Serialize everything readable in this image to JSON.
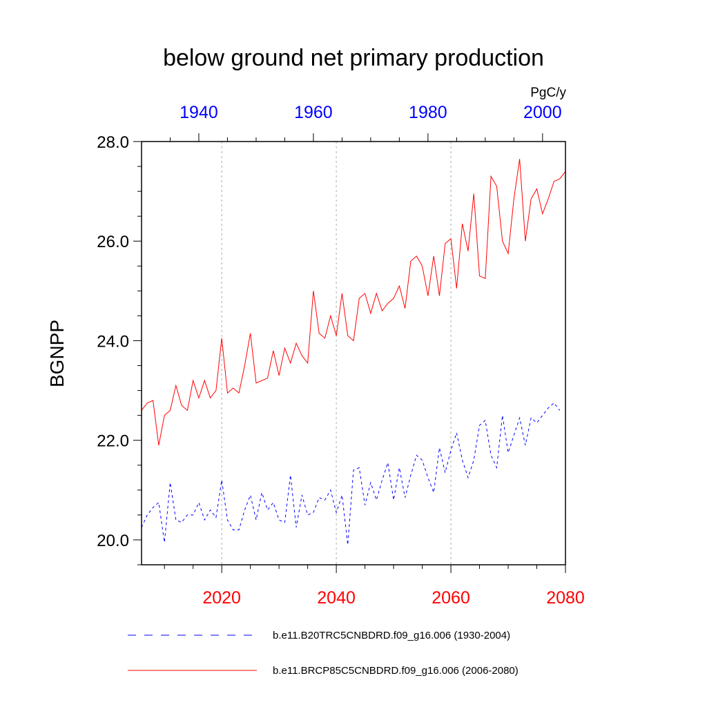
{
  "chart_data": {
    "type": "line",
    "title": "below ground net primary production",
    "ylabel": "BGNPP",
    "units": "PgC/y",
    "ylim": [
      19.5,
      28.0
    ],
    "yticks": [
      "20.0",
      "22.0",
      "24.0",
      "26.0",
      "28.0"
    ],
    "ytick_values": [
      20,
      22,
      24,
      26,
      28
    ],
    "bottom_axis": {
      "xlim": [
        2006,
        2080
      ],
      "ticks": [
        "2020",
        "2040",
        "2060",
        "2080"
      ],
      "tick_values": [
        2020,
        2040,
        2060,
        2080
      ],
      "color": "#ff0000"
    },
    "top_axis": {
      "xlim": [
        1930,
        2004
      ],
      "ticks": [
        "1940",
        "1960",
        "1980",
        "2000"
      ],
      "tick_values": [
        1940,
        1960,
        1980,
        2000
      ],
      "color": "#0000ff"
    },
    "gridlines_x": [
      2020,
      2040,
      2060
    ],
    "series": [
      {
        "name": "b.e11.B20TRC5CNBDRD.f09_g16.006 (1930-2004)",
        "axis": "top",
        "color": "#0000ff",
        "style": "dashed",
        "x_start": 1930,
        "values": [
          20.25,
          20.5,
          20.65,
          20.75,
          19.95,
          21.15,
          20.4,
          20.35,
          20.5,
          20.5,
          20.75,
          20.4,
          20.6,
          20.45,
          21.2,
          20.4,
          20.2,
          20.2,
          20.6,
          20.9,
          20.4,
          20.95,
          20.6,
          20.75,
          20.4,
          20.35,
          21.3,
          20.25,
          20.9,
          20.5,
          20.55,
          20.85,
          20.8,
          21.0,
          20.55,
          20.9,
          19.9,
          21.4,
          21.45,
          20.7,
          21.15,
          20.8,
          21.2,
          21.55,
          20.8,
          21.45,
          20.85,
          21.3,
          21.7,
          21.6,
          21.25,
          20.95,
          21.85,
          21.35,
          21.8,
          22.15,
          21.6,
          21.25,
          21.6,
          22.3,
          22.4,
          21.7,
          21.45,
          22.5,
          21.75,
          22.1,
          22.45,
          21.9,
          22.45,
          22.35,
          22.5,
          22.65,
          22.75,
          22.6
        ]
      },
      {
        "name": "b.e11.BRCP85C5CNBDRD.f09_g16.006 (2006-2080)",
        "axis": "bottom",
        "color": "#ff0000",
        "style": "solid",
        "x_start": 2006,
        "values": [
          22.6,
          22.75,
          22.8,
          21.9,
          22.5,
          22.6,
          23.1,
          22.7,
          22.6,
          23.2,
          22.85,
          23.2,
          22.85,
          23.0,
          24.05,
          22.95,
          23.05,
          22.95,
          23.5,
          24.15,
          23.15,
          23.2,
          23.25,
          23.8,
          23.3,
          23.85,
          23.55,
          23.95,
          23.7,
          23.55,
          25.0,
          24.15,
          24.05,
          24.5,
          24.1,
          24.95,
          24.1,
          24.0,
          24.85,
          24.95,
          24.55,
          24.95,
          24.6,
          24.75,
          24.85,
          25.1,
          24.65,
          25.6,
          25.7,
          25.5,
          24.9,
          25.7,
          24.9,
          25.95,
          26.05,
          25.05,
          26.35,
          25.8,
          26.95,
          25.3,
          25.25,
          27.3,
          27.1,
          26.0,
          25.75,
          26.85,
          27.65,
          26.0,
          26.85,
          27.05,
          26.55,
          26.85,
          27.2,
          27.25,
          27.4
        ]
      }
    ]
  }
}
